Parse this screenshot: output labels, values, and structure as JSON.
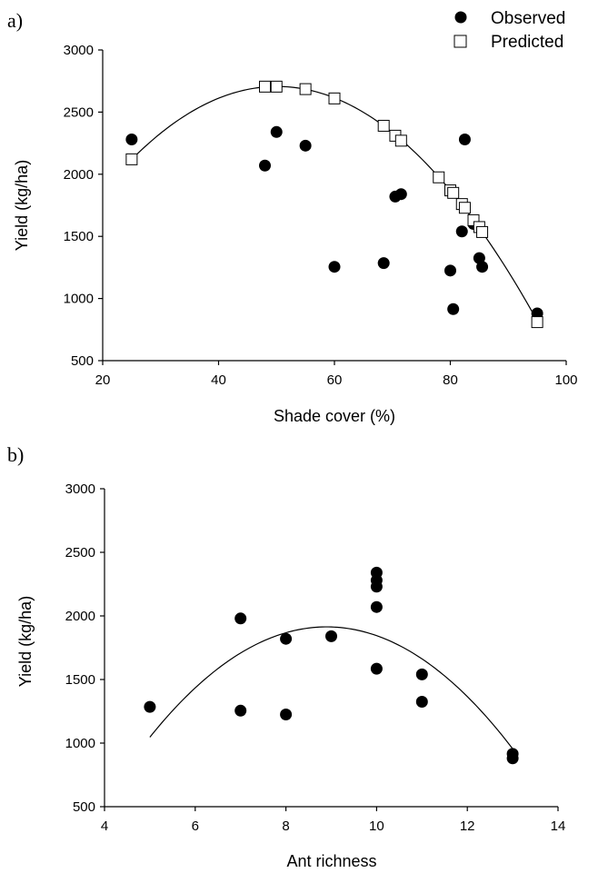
{
  "chart_data": [
    {
      "panel_label": "a)",
      "type": "scatter",
      "xlabel": "Shade cover (%)",
      "ylabel": "Yield (kg/ha)",
      "xlim": [
        20,
        100
      ],
      "ylim": [
        500,
        3000
      ],
      "xticks": [
        20,
        40,
        60,
        80,
        100
      ],
      "yticks": [
        500,
        1000,
        1500,
        2000,
        2500,
        3000
      ],
      "legend": {
        "placement": "top-right",
        "entries": [
          "Observed",
          "Predicted"
        ]
      },
      "series": [
        {
          "name": "Observed",
          "marker": "filled-circle",
          "points": [
            [
              25,
              2280
            ],
            [
              48,
              2070
            ],
            [
              50,
              2340
            ],
            [
              55,
              2230
            ],
            [
              60,
              1255
            ],
            [
              68.5,
              1285
            ],
            [
              70.5,
              1820
            ],
            [
              71.5,
              1840
            ],
            [
              80,
              1225
            ],
            [
              80.5,
              915
            ],
            [
              82,
              1540
            ],
            [
              82.5,
              2280
            ],
            [
              84,
              1600
            ],
            [
              85,
              1325
            ],
            [
              85.5,
              1255
            ],
            [
              95,
              880
            ]
          ]
        },
        {
          "name": "Predicted",
          "marker": "open-square",
          "points": [
            [
              25,
              2120
            ],
            [
              48,
              2705
            ],
            [
              50,
              2705
            ],
            [
              55,
              2685
            ],
            [
              60,
              2610
            ],
            [
              68.5,
              2390
            ],
            [
              70.5,
              2310
            ],
            [
              71.5,
              2270
            ],
            [
              78,
              1975
            ],
            [
              80,
              1870
            ],
            [
              80.5,
              1850
            ],
            [
              82,
              1760
            ],
            [
              82.5,
              1730
            ],
            [
              84,
              1630
            ],
            [
              85,
              1575
            ],
            [
              85.5,
              1535
            ],
            [
              95,
              810
            ]
          ]
        }
      ],
      "fit": "quadratic"
    },
    {
      "panel_label": "b)",
      "type": "scatter",
      "xlabel": "Ant richness",
      "ylabel": "Yield (kg/ha)",
      "xlim": [
        4,
        14
      ],
      "ylim": [
        500,
        3000
      ],
      "xticks": [
        4,
        6,
        8,
        10,
        12,
        14
      ],
      "yticks": [
        500,
        1000,
        1500,
        2000,
        2500,
        3000
      ],
      "series": [
        {
          "marker": "filled-circle",
          "points": [
            [
              5,
              1285
            ],
            [
              7,
              1980
            ],
            [
              7,
              1255
            ],
            [
              8,
              1820
            ],
            [
              8,
              1225
            ],
            [
              9,
              1840
            ],
            [
              10,
              2340
            ],
            [
              10,
              2280
            ],
            [
              10,
              2230
            ],
            [
              10,
              2070
            ],
            [
              10,
              1585
            ],
            [
              11,
              1540
            ],
            [
              11,
              1325
            ],
            [
              13,
              915
            ],
            [
              13,
              880
            ]
          ]
        }
      ],
      "fit": "quadratic",
      "fit_range": [
        5,
        13
      ]
    }
  ]
}
